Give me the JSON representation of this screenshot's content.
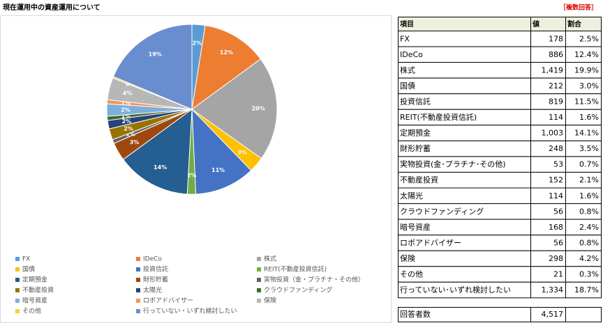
{
  "title": "現在運用中の資産運用について",
  "note": "［複数回答］",
  "chart_data": {
    "type": "pie",
    "categories": [
      "FX",
      "IDeCo",
      "株式",
      "国債",
      "投資信託",
      "REIT(不動産投資信託)",
      "定期預金",
      "財形貯蓄",
      "実物投資（金・プラチナ・その他）",
      "不動産投資",
      "太陽光",
      "クラウドファンディング",
      "暗号資産",
      "ロボアドバイザー",
      "保険",
      "その他",
      "行っていない・いずれ検討したい"
    ],
    "values": [
      2.496,
      12.425,
      19.899,
      2.973,
      11.485,
      1.599,
      14.065,
      3.478,
      0.743,
      2.132,
      1.599,
      0.785,
      2.356,
      0.785,
      4.179,
      0.294,
      18.707
    ],
    "value_labels": [
      "2%",
      "12%",
      "20%",
      "3%",
      "11%",
      "2%",
      "14%",
      "3%",
      "1%",
      "2%",
      "2%",
      "1%",
      "2%",
      "1%",
      "4%",
      "0%",
      "19%"
    ],
    "colors": [
      "#5b9bd5",
      "#ed7d31",
      "#a5a5a5",
      "#ffc000",
      "#4472c4",
      "#70ad47",
      "#255e91",
      "#9e480e",
      "#636363",
      "#997300",
      "#264478",
      "#43682b",
      "#7cafdd",
      "#f1975a",
      "#b7b7b7",
      "#ffcd33",
      "#698ed0"
    ],
    "legend": "bottom"
  },
  "table": {
    "header": [
      "項目",
      "値",
      "割合"
    ],
    "rows": [
      [
        "FX",
        "178",
        "2.5%"
      ],
      [
        "IDeCo",
        "886",
        "12.4%"
      ],
      [
        "株式",
        "1,419",
        "19.9%"
      ],
      [
        "国債",
        "212",
        "3.0%"
      ],
      [
        "投資信託",
        "819",
        "11.5%"
      ],
      [
        "REIT(不動産投資信託)",
        "114",
        "1.6%"
      ],
      [
        "定期預金",
        "1,003",
        "14.1%"
      ],
      [
        "財形貯蓄",
        "248",
        "3.5%"
      ],
      [
        "実物投資(金･プラチナ･その他)",
        "53",
        "0.7%"
      ],
      [
        "不動産投資",
        "152",
        "2.1%"
      ],
      [
        "太陽光",
        "114",
        "1.6%"
      ],
      [
        "クラウドファンディング",
        "56",
        "0.8%"
      ],
      [
        "暗号資産",
        "168",
        "2.4%"
      ],
      [
        "ロボアドバイザー",
        "56",
        "0.8%"
      ],
      [
        "保険",
        "298",
        "4.2%"
      ],
      [
        "その他",
        "21",
        "0.3%"
      ],
      [
        "行っていない･いずれ検討したい",
        "1,334",
        "18.7%"
      ]
    ],
    "footer": [
      "回答者数",
      "4,517"
    ]
  }
}
